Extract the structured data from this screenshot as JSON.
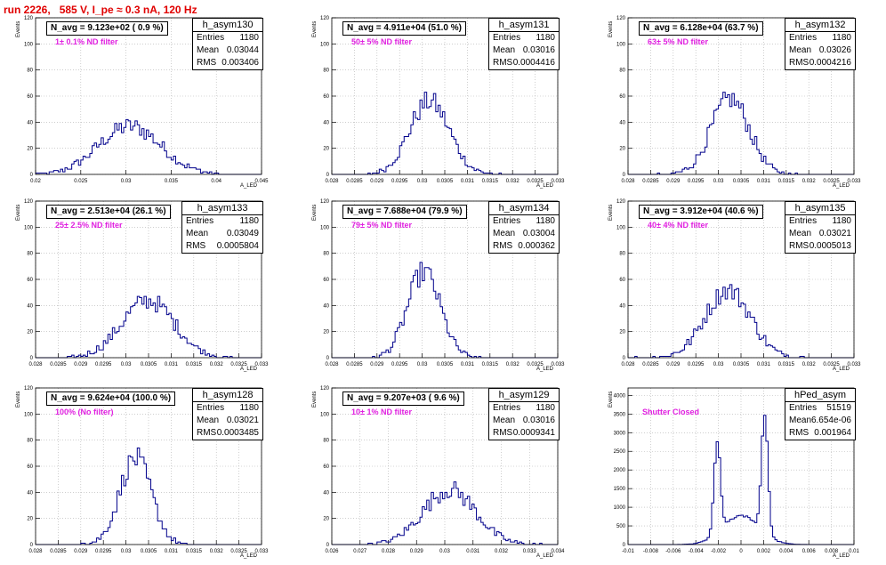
{
  "header": {
    "run_title": "run 2226,   585 V, I_pe ≈ 0.3 nA, 120 Hz"
  },
  "labels": {
    "y_axis": "Events",
    "x_axis": "A_LED"
  },
  "stats_labels": {
    "entries": "Entries",
    "mean": "Mean",
    "rms": "RMS"
  },
  "colors": {
    "histogram_line": "#00008b",
    "title_red": "#e00000",
    "filter_magenta": "#e020e0",
    "grid": "#b0b0b0"
  },
  "chart_data": [
    {
      "type": "bar",
      "name": "h_asym130",
      "navg": "N_avg = 9.123e+02 ( 0.9 %)",
      "filter": "1± 0.1% ND filter",
      "entries": "1180",
      "mean": "0.03044",
      "rms": "0.003406",
      "xlim": [
        0.02,
        0.045
      ],
      "ylim": [
        0,
        120
      ],
      "xticks": [
        "0.02",
        "0.025",
        "0.03",
        "0.035",
        "0.04",
        "0.045"
      ],
      "yticks": [
        "0",
        "20",
        "40",
        "60",
        "80",
        "100",
        "120"
      ],
      "gauss": [
        {
          "mu": 0.0304,
          "sigma": 0.0034,
          "amp": 37
        }
      ],
      "nbins": 100
    },
    {
      "type": "bar",
      "name": "h_asym131",
      "navg": "N_avg = 4.911e+04 (51.0 %)",
      "filter": "50± 5% ND filter",
      "entries": "1180",
      "mean": "0.03016",
      "rms": "0.0004416",
      "xlim": [
        0.028,
        0.033
      ],
      "ylim": [
        0,
        120
      ],
      "xticks": [
        "0.028",
        "0.0285",
        "0.029",
        "0.0295",
        "0.03",
        "0.0305",
        "0.031",
        "0.0315",
        "0.032",
        "0.0325",
        "0.033"
      ],
      "yticks": [
        "0",
        "20",
        "40",
        "60",
        "80",
        "100",
        "120"
      ],
      "gauss": [
        {
          "mu": 0.03016,
          "sigma": 0.00044,
          "amp": 56
        }
      ],
      "nbins": 100
    },
    {
      "type": "bar",
      "name": "h_asym132",
      "navg": "N_avg = 6.128e+04 (63.7 %)",
      "filter": "63± 5% ND filter",
      "entries": "1180",
      "mean": "0.03026",
      "rms": "0.0004216",
      "xlim": [
        0.028,
        0.033
      ],
      "ylim": [
        0,
        120
      ],
      "xticks": [
        "0.028",
        "0.0285",
        "0.029",
        "0.0295",
        "0.03",
        "0.0305",
        "0.031",
        "0.0315",
        "0.032",
        "0.0325",
        "0.033"
      ],
      "yticks": [
        "0",
        "20",
        "40",
        "60",
        "80",
        "100",
        "120"
      ],
      "gauss": [
        {
          "mu": 0.03026,
          "sigma": 0.00042,
          "amp": 58
        }
      ],
      "nbins": 100
    },
    {
      "type": "bar",
      "name": "h_asym133",
      "navg": "N_avg = 2.513e+04 (26.1 %)",
      "filter": "25± 2.5% ND filter",
      "entries": "1180",
      "mean": "0.03049",
      "rms": "0.0005804",
      "xlim": [
        0.028,
        0.033
      ],
      "ylim": [
        0,
        120
      ],
      "xticks": [
        "0.028",
        "0.0285",
        "0.029",
        "0.0295",
        "0.03",
        "0.0305",
        "0.031",
        "0.0315",
        "0.032",
        "0.0325",
        "0.033"
      ],
      "yticks": [
        "0",
        "20",
        "40",
        "60",
        "80",
        "100",
        "120"
      ],
      "gauss": [
        {
          "mu": 0.03049,
          "sigma": 0.00058,
          "amp": 44
        }
      ],
      "nbins": 100
    },
    {
      "type": "bar",
      "name": "h_asym134",
      "navg": "N_avg = 7.688e+04 (79.9 %)",
      "filter": "79± 5% ND filter",
      "entries": "1180",
      "mean": "0.03004",
      "rms": "0.000362",
      "xlim": [
        0.028,
        0.033
      ],
      "ylim": [
        0,
        120
      ],
      "xticks": [
        "0.028",
        "0.0285",
        "0.029",
        "0.0295",
        "0.03",
        "0.0305",
        "0.031",
        "0.0315",
        "0.032",
        "0.0325",
        "0.033"
      ],
      "yticks": [
        "0",
        "20",
        "40",
        "60",
        "80",
        "100",
        "120"
      ],
      "gauss": [
        {
          "mu": 0.03004,
          "sigma": 0.00036,
          "amp": 66
        }
      ],
      "nbins": 100
    },
    {
      "type": "bar",
      "name": "h_asym135",
      "navg": "N_avg = 3.912e+04 (40.6 %)",
      "filter": "40± 4% ND filter",
      "entries": "1180",
      "mean": "0.03021",
      "rms": "0.0005013",
      "xlim": [
        0.028,
        0.033
      ],
      "ylim": [
        0,
        120
      ],
      "xticks": [
        "0.028",
        "0.0285",
        "0.029",
        "0.0295",
        "0.03",
        "0.0305",
        "0.031",
        "0.0315",
        "0.032",
        "0.0325",
        "0.033"
      ],
      "yticks": [
        "0",
        "20",
        "40",
        "60",
        "80",
        "100",
        "120"
      ],
      "gauss": [
        {
          "mu": 0.03021,
          "sigma": 0.0005,
          "amp": 52
        }
      ],
      "nbins": 100
    },
    {
      "type": "bar",
      "name": "h_asym128",
      "navg": "N_avg = 9.624e+04 (100.0 %)",
      "filter": "100% (No filter)",
      "entries": "1180",
      "mean": "0.03021",
      "rms": "0.0003485",
      "xlim": [
        0.028,
        0.033
      ],
      "ylim": [
        0,
        120
      ],
      "xticks": [
        "0.028",
        "0.0285",
        "0.029",
        "0.0295",
        "0.03",
        "0.0305",
        "0.031",
        "0.0315",
        "0.032",
        "0.0325",
        "0.033"
      ],
      "yticks": [
        "0",
        "20",
        "40",
        "60",
        "80",
        "100",
        "120"
      ],
      "gauss": [
        {
          "mu": 0.03021,
          "sigma": 0.00035,
          "amp": 66
        }
      ],
      "nbins": 100
    },
    {
      "type": "bar",
      "name": "h_asym129",
      "navg": "N_avg = 9.207e+03 ( 9.6 %)",
      "filter": "10± 1% ND filter",
      "entries": "1180",
      "mean": "0.03016",
      "rms": "0.0009341",
      "xlim": [
        0.026,
        0.034
      ],
      "ylim": [
        0,
        120
      ],
      "xticks": [
        "0.026",
        "0.027",
        "0.028",
        "0.029",
        "0.03",
        "0.031",
        "0.032",
        "0.033",
        "0.034"
      ],
      "yticks": [
        "0",
        "20",
        "40",
        "60",
        "80",
        "100",
        "120"
      ],
      "gauss": [
        {
          "mu": 0.03016,
          "sigma": 0.00093,
          "amp": 42
        }
      ],
      "nbins": 100
    },
    {
      "type": "bar",
      "name": "hPed_asym",
      "navg": "",
      "filter": "Shutter Closed",
      "entries": "51519",
      "mean": "6.654e-06",
      "rms": "0.001964",
      "xlim": [
        -0.01,
        0.01
      ],
      "ylim": [
        0,
        4200
      ],
      "xticks": [
        "-0.01",
        "-0.008",
        "-0.006",
        "-0.004",
        "-0.002",
        "0",
        "0.002",
        "0.004",
        "0.006",
        "0.008",
        "0.01"
      ],
      "yticks": [
        "0",
        "500",
        "1000",
        "1500",
        "2000",
        "2500",
        "3000",
        "3500",
        "4000"
      ],
      "gauss": [
        {
          "mu": -0.0021,
          "sigma": 0.00028,
          "amp": 2450
        },
        {
          "mu": 0.0021,
          "sigma": 0.00028,
          "amp": 3200
        },
        {
          "mu": 0.0,
          "sigma": 0.0016,
          "amp": 780
        }
      ],
      "nbins": 100
    }
  ]
}
